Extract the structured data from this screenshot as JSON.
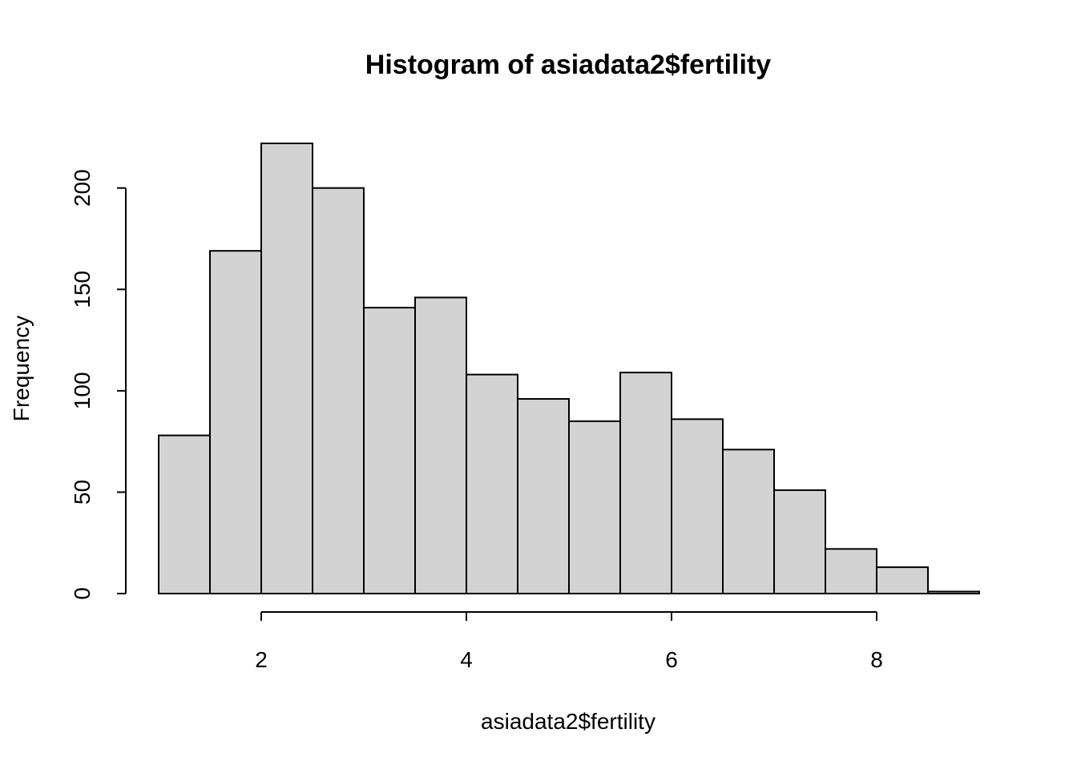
{
  "chart_data": {
    "type": "bar",
    "title": "Histogram of asiadata2$fertility",
    "xlabel": "asiadata2$fertility",
    "ylabel": "Frequency",
    "bin_width": 0.5,
    "bins": [
      {
        "start": 1.0,
        "end": 1.5,
        "count": 78
      },
      {
        "start": 1.5,
        "end": 2.0,
        "count": 169
      },
      {
        "start": 2.0,
        "end": 2.5,
        "count": 222
      },
      {
        "start": 2.5,
        "end": 3.0,
        "count": 200
      },
      {
        "start": 3.0,
        "end": 3.5,
        "count": 141
      },
      {
        "start": 3.5,
        "end": 4.0,
        "count": 146
      },
      {
        "start": 4.0,
        "end": 4.5,
        "count": 108
      },
      {
        "start": 4.5,
        "end": 5.0,
        "count": 96
      },
      {
        "start": 5.0,
        "end": 5.5,
        "count": 85
      },
      {
        "start": 5.5,
        "end": 6.0,
        "count": 109
      },
      {
        "start": 6.0,
        "end": 6.5,
        "count": 86
      },
      {
        "start": 6.5,
        "end": 7.0,
        "count": 71
      },
      {
        "start": 7.0,
        "end": 7.5,
        "count": 51
      },
      {
        "start": 7.5,
        "end": 8.0,
        "count": 22
      },
      {
        "start": 8.0,
        "end": 8.5,
        "count": 13
      },
      {
        "start": 8.5,
        "end": 9.0,
        "count": 1
      }
    ],
    "xlim": [
      1,
      9
    ],
    "ylim": [
      0,
      222
    ],
    "x_ticks": [
      2,
      4,
      6,
      8
    ],
    "x_tick_labels": [
      "2",
      "4",
      "6",
      "8"
    ],
    "y_ticks": [
      0,
      50,
      100,
      150,
      200
    ],
    "y_tick_labels": [
      "0",
      "50",
      "100",
      "150",
      "200"
    ],
    "grid": false,
    "bar_color": "#d3d3d3",
    "edge_color": "#000000"
  }
}
